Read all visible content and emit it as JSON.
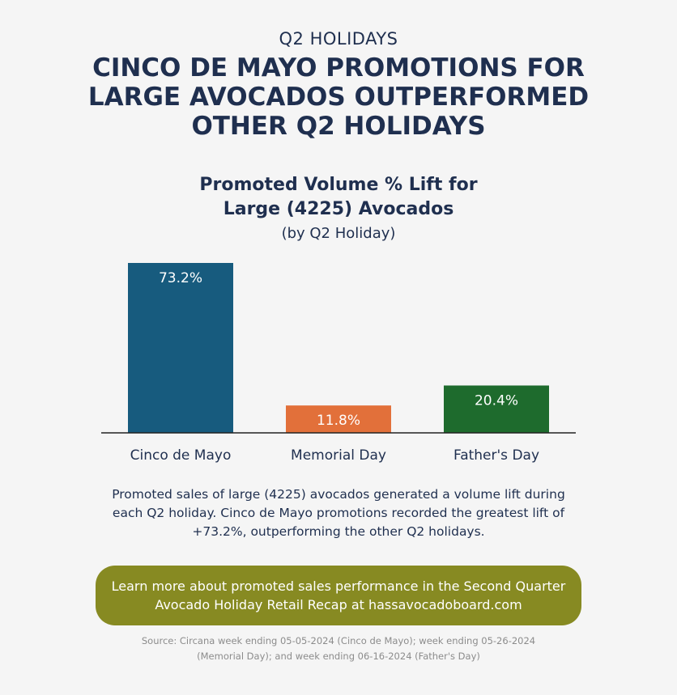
{
  "header": {
    "kicker": "Q2 HOLIDAYS",
    "headline_lines": [
      "CINCO DE MAYO PROMOTIONS FOR",
      "LARGE AVOCADOS OUTPERFORMED",
      "OTHER Q2 HOLIDAYS"
    ]
  },
  "chart_data": {
    "type": "bar",
    "title_lines": [
      "Promoted Volume % Lift for",
      "Large (4225) Avocados"
    ],
    "subtitle": "(by Q2 Holiday)",
    "categories": [
      "Cinco de Mayo",
      "Memorial Day",
      "Father's Day"
    ],
    "values": [
      73.2,
      11.8,
      20.4
    ],
    "value_labels": [
      "73.2%",
      "11.8%",
      "20.4%"
    ],
    "colors": [
      "#175b7e",
      "#e2703a",
      "#1e6b2d"
    ],
    "ylim": [
      0,
      73.2
    ],
    "grid": false,
    "xlabel": "",
    "ylabel": ""
  },
  "description_lines": [
    "Promoted sales of large (4225) avocados generated a volume lift during",
    "each Q2 holiday. Cinco de Mayo promotions recorded the greatest lift of",
    "+73.2%, outperforming the other Q2 holidays."
  ],
  "cta": {
    "lines": [
      "Learn more about promoted sales performance in the Second Quarter",
      "Avocado Holiday Retail Recap at hassavocadoboard.com"
    ],
    "color": "#878a22"
  },
  "source_lines": [
    "Source: Circana week ending 05-05-2024 (Cinco de Mayo); week ending 05-26-2024",
    "(Memorial Day); and week ending 06-16-2024 (Father's Day)"
  ]
}
